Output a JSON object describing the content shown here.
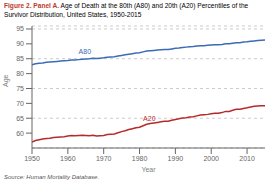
{
  "chart_data": {
    "type": "line",
    "title": "Figure 2. Panel A.",
    "subtitle": "Age of Death at the 80th (A80) and 20th (A20) Percentiles of the Survivor Distribution, United States, 1950-2015",
    "x_label": "Year",
    "y_label": "Age",
    "source": "Source: Human Mortality Database.",
    "x": [
      1950,
      1951,
      1952,
      1953,
      1954,
      1955,
      1956,
      1957,
      1958,
      1959,
      1960,
      1961,
      1962,
      1963,
      1964,
      1965,
      1966,
      1967,
      1968,
      1969,
      1970,
      1971,
      1972,
      1973,
      1974,
      1975,
      1976,
      1977,
      1978,
      1979,
      1980,
      1981,
      1982,
      1983,
      1984,
      1985,
      1986,
      1987,
      1988,
      1989,
      1990,
      1991,
      1992,
      1993,
      1994,
      1995,
      1996,
      1997,
      1998,
      1999,
      2000,
      2001,
      2002,
      2003,
      2004,
      2005,
      2006,
      2007,
      2008,
      2009,
      2010,
      2011,
      2012,
      2013,
      2014,
      2015
    ],
    "series": [
      {
        "name": "A80",
        "color": "#3B6BB5",
        "values": [
          83.0,
          83.3,
          83.5,
          83.6,
          83.8,
          83.9,
          84.0,
          84.1,
          84.2,
          84.3,
          84.4,
          84.6,
          84.6,
          84.7,
          84.8,
          84.9,
          85.0,
          85.2,
          85.1,
          85.2,
          85.3,
          85.5,
          85.6,
          85.7,
          85.9,
          86.1,
          86.3,
          86.5,
          86.7,
          86.9,
          87.0,
          87.3,
          87.6,
          87.7,
          87.8,
          87.9,
          88.0,
          88.1,
          88.1,
          88.3,
          88.5,
          88.6,
          88.8,
          88.9,
          89.0,
          89.1,
          89.3,
          89.4,
          89.4,
          89.5,
          89.6,
          89.7,
          89.7,
          89.8,
          90.0,
          90.0,
          90.2,
          90.4,
          90.4,
          90.6,
          90.7,
          90.9,
          91.0,
          91.1,
          91.2,
          91.3
        ]
      },
      {
        "name": "A20",
        "color": "#B52A2A",
        "values": [
          57.0,
          57.5,
          57.8,
          58.0,
          58.2,
          58.3,
          58.5,
          58.6,
          58.7,
          58.8,
          59.0,
          59.2,
          59.1,
          59.2,
          59.3,
          59.2,
          59.1,
          59.3,
          59.0,
          59.1,
          59.2,
          59.5,
          59.6,
          59.7,
          60.1,
          60.5,
          60.8,
          61.2,
          61.5,
          61.8,
          62.0,
          62.5,
          63.0,
          63.2,
          63.4,
          63.6,
          63.8,
          64.0,
          64.0,
          64.3,
          64.6,
          64.8,
          65.1,
          65.2,
          65.4,
          65.5,
          65.8,
          66.1,
          66.2,
          66.3,
          66.5,
          66.7,
          66.7,
          66.9,
          67.3,
          67.3,
          67.7,
          68.0,
          68.0,
          68.3,
          68.5,
          68.8,
          69.0,
          69.1,
          69.2,
          69.2
        ]
      }
    ],
    "annotations": [
      {
        "text": "A80",
        "x": 1963,
        "y": 85.8,
        "color": "#3B6BB5"
      },
      {
        "text": "A20",
        "x": 1981,
        "y": 63.5,
        "color": "#B52A2A"
      }
    ],
    "xlim": [
      1950,
      2015
    ],
    "xticks": [
      1950,
      1960,
      1970,
      1980,
      1990,
      2000,
      2010
    ],
    "ylim": [
      55,
      96
    ],
    "yticks": [
      60,
      65,
      70,
      75,
      80,
      85,
      90,
      95
    ],
    "grid": true
  }
}
